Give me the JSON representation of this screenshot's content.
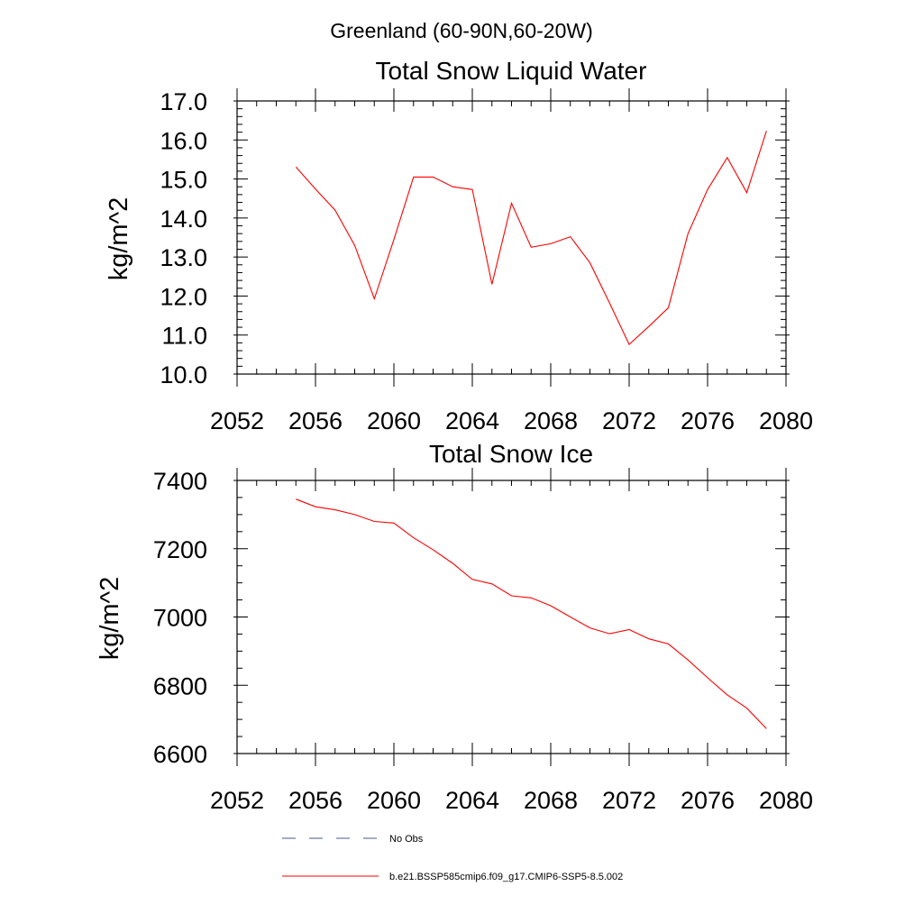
{
  "figure_title": "Greenland (60-90N,60-20W)",
  "chart_data": [
    {
      "type": "line",
      "title": "Total Snow Liquid Water",
      "xlabel": "",
      "ylabel": "kg/m^2",
      "xlim": [
        2052,
        2080
      ],
      "ylim": [
        10.0,
        17.0
      ],
      "x_ticks": [
        2052,
        2056,
        2060,
        2064,
        2068,
        2072,
        2076,
        2080
      ],
      "y_ticks": [
        10.0,
        11.0,
        12.0,
        13.0,
        14.0,
        15.0,
        16.0,
        17.0
      ],
      "y_tick_labels": [
        "10.0",
        "11.0",
        "12.0",
        "13.0",
        "14.0",
        "15.0",
        "16.0",
        "17.0"
      ],
      "x": [
        2055,
        2056,
        2057,
        2058,
        2059,
        2060,
        2061,
        2062,
        2063,
        2064,
        2065,
        2066,
        2067,
        2068,
        2069,
        2070,
        2071,
        2072,
        2073,
        2074,
        2075,
        2076,
        2077,
        2078,
        2079
      ],
      "series": [
        {
          "name": "b.e21.BSSP585cmip6.f09_g17.CMIP6-SSP5-8.5.002",
          "color": "#ff0000",
          "values": [
            15.31,
            14.74,
            14.2,
            13.3,
            11.93,
            13.45,
            15.05,
            15.05,
            14.8,
            14.73,
            12.3,
            14.38,
            13.25,
            13.34,
            13.52,
            12.85,
            11.82,
            10.76,
            11.22,
            11.7,
            13.6,
            14.73,
            15.55,
            14.65,
            16.23
          ]
        }
      ],
      "grid": false,
      "legend": "bottom"
    },
    {
      "type": "line",
      "title": "Total Snow Ice",
      "xlabel": "",
      "ylabel": "kg/m^2",
      "xlim": [
        2052,
        2080
      ],
      "ylim": [
        6600,
        7400
      ],
      "x_ticks": [
        2052,
        2056,
        2060,
        2064,
        2068,
        2072,
        2076,
        2080
      ],
      "y_ticks": [
        6600,
        6800,
        7000,
        7200,
        7400
      ],
      "y_tick_labels": [
        "6600",
        "6800",
        "7000",
        "7200",
        "7400"
      ],
      "x": [
        2055,
        2056,
        2057,
        2058,
        2059,
        2060,
        2061,
        2062,
        2063,
        2064,
        2065,
        2066,
        2067,
        2068,
        2069,
        2070,
        2071,
        2072,
        2073,
        2074,
        2075,
        2076,
        2077,
        2078,
        2079
      ],
      "series": [
        {
          "name": "b.e21.BSSP585cmip6.f09_g17.CMIP6-SSP5-8.5.002",
          "color": "#ff0000",
          "values": [
            7345,
            7323,
            7314,
            7300,
            7280,
            7275,
            7232,
            7197,
            7157,
            7110,
            7097,
            7062,
            7056,
            7033,
            7000,
            6968,
            6951,
            6963,
            6936,
            6921,
            6874,
            6822,
            6772,
            6733,
            6673
          ]
        }
      ],
      "grid": false,
      "legend": "bottom"
    }
  ],
  "legend": {
    "entries": [
      {
        "label": "No Obs",
        "style": "dashed",
        "color": "#4a5a8a"
      },
      {
        "label": "b.e21.BSSP585cmip6.f09_g17.CMIP6-SSP5-8.5.002",
        "style": "solid",
        "color": "#ff0000"
      }
    ]
  }
}
